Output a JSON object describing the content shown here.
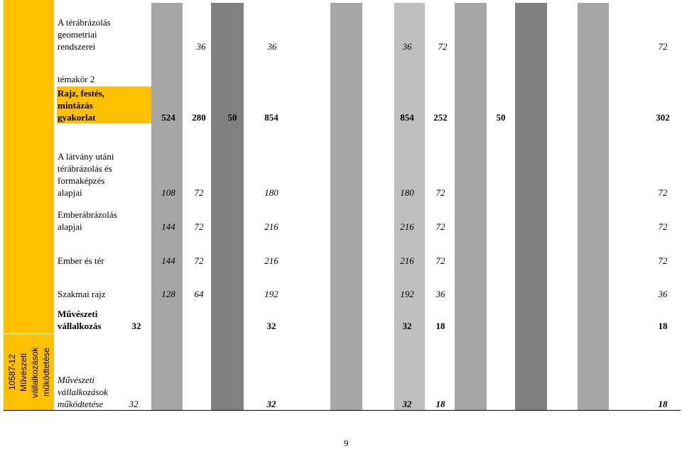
{
  "side_label": "10587-12 Művészeti vállalkozások működtetése",
  "subheading": "témakör 2",
  "rows": [
    {
      "label": "A térábrázolás geometriai rendszerei",
      "values": [
        36,
        36,
        36,
        72,
        72
      ]
    },
    {
      "label": "Rajz, festés, mintázás gyakorlat",
      "values": [
        524,
        280,
        50,
        854,
        854,
        252,
        50,
        302
      ]
    },
    {
      "label": "A látvány utáni térábrázolás és formaképzés alapjai",
      "values": [
        108,
        72,
        180,
        180,
        72,
        72
      ]
    },
    {
      "label": "Emberábrázolás alapjai",
      "values": [
        144,
        72,
        216,
        216,
        72,
        72
      ]
    },
    {
      "label": "Ember és tér",
      "values": [
        144,
        72,
        216,
        216,
        72,
        72
      ]
    },
    {
      "label": "Szakmai rajz",
      "values": [
        128,
        64,
        192,
        192,
        36,
        36
      ]
    },
    {
      "label": "Művészeti vállalkozás",
      "values": [
        32,
        32,
        32,
        18,
        18
      ]
    },
    {
      "label": "Művészeti vállalkozások működtetése",
      "values": [
        32,
        32,
        32,
        18,
        18
      ]
    }
  ],
  "page_number": "9"
}
